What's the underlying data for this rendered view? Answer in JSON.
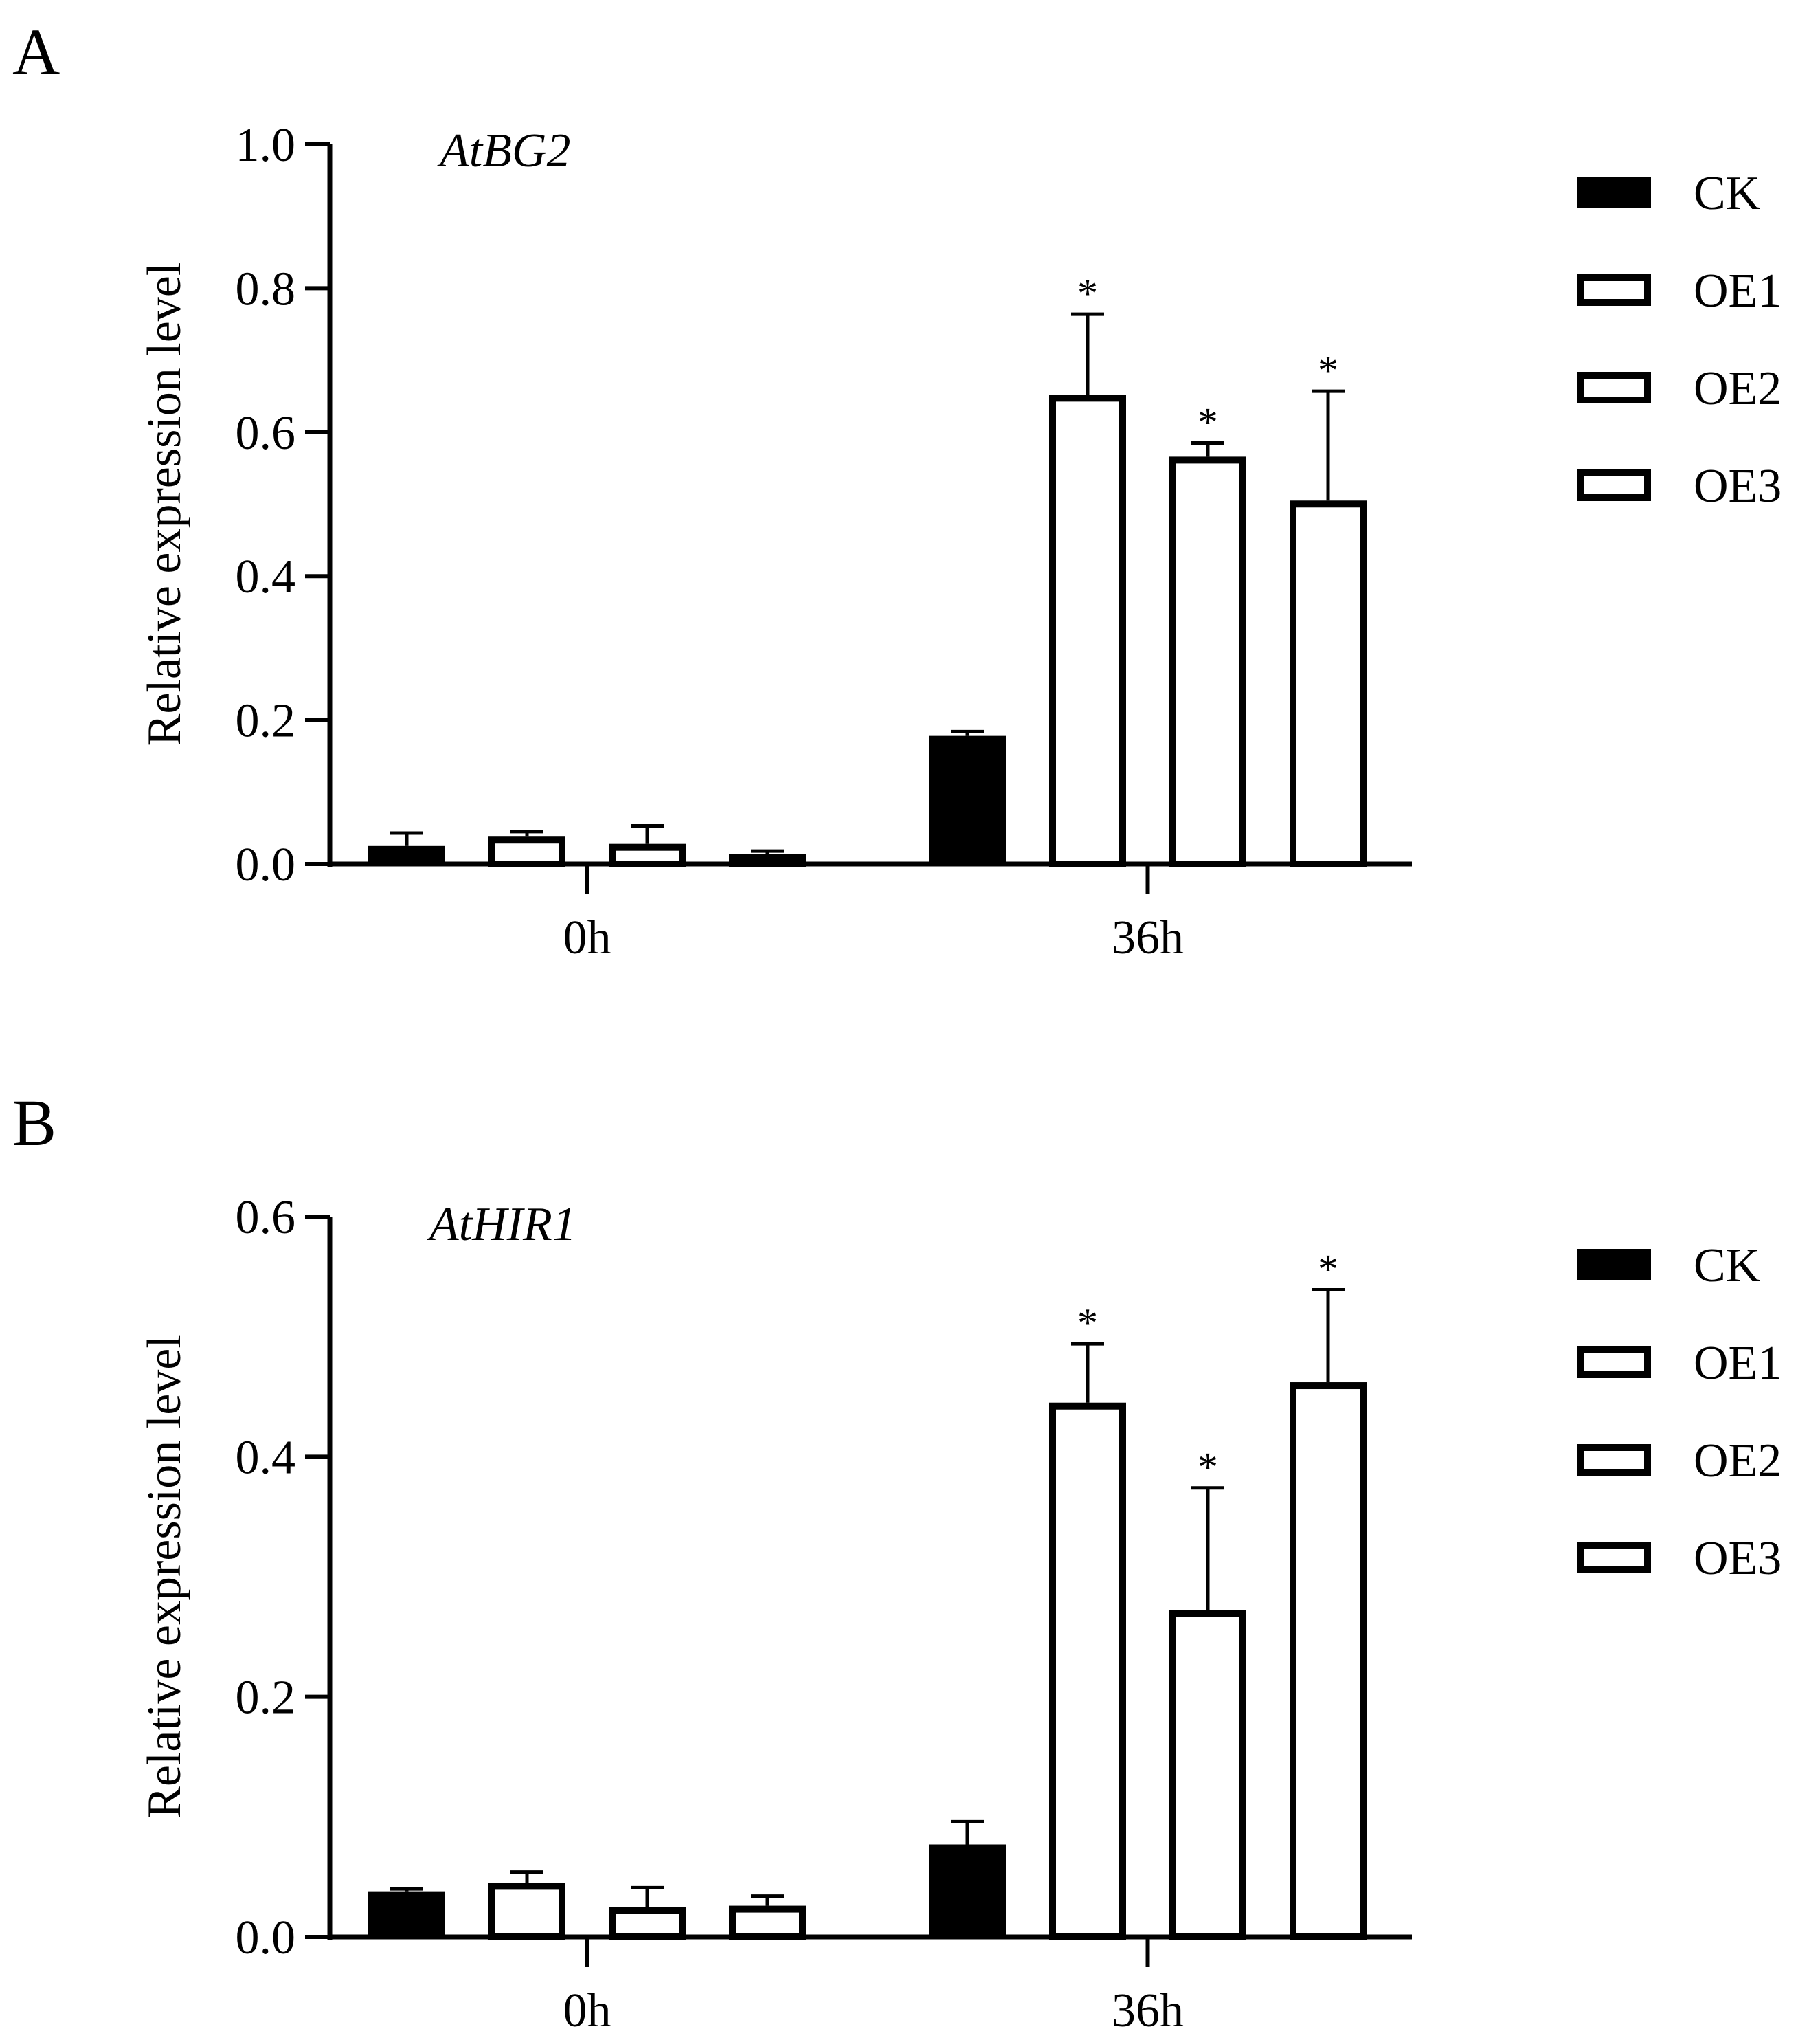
{
  "figure": {
    "colors": {
      "ink": "#000000",
      "open_fill": "#ffffff",
      "filled": "#000000"
    }
  },
  "chart_data": [
    {
      "type": "bar",
      "panel_label": "A",
      "title": "AtBG2",
      "xlabel": "",
      "ylabel": "Relative expression level",
      "categories": [
        "0h",
        "36h"
      ],
      "ylim": [
        0,
        1.0
      ],
      "yticks": [
        "0.0",
        "0.2",
        "0.4",
        "0.6",
        "0.8",
        "1.0"
      ],
      "legend": [
        "CK",
        "OE1",
        "OE2",
        "OE3"
      ],
      "legend_position": "right",
      "series": [
        {
          "name": "CK",
          "style": "filled",
          "values": [
            0.025,
            0.178
          ],
          "errors": [
            0.018,
            0.006
          ],
          "marks": [
            "",
            ""
          ]
        },
        {
          "name": "OE1",
          "style": "open",
          "values": [
            0.038,
            0.652
          ],
          "errors": [
            0.007,
            0.112
          ],
          "marks": [
            "",
            "*"
          ]
        },
        {
          "name": "OE2",
          "style": "open",
          "values": [
            0.028,
            0.566
          ],
          "errors": [
            0.025,
            0.019
          ],
          "marks": [
            "",
            "*"
          ]
        },
        {
          "name": "OE3",
          "style": "open",
          "values": [
            0.014,
            0.505
          ],
          "errors": [
            0.004,
            0.152
          ],
          "marks": [
            "",
            "*"
          ]
        }
      ]
    },
    {
      "type": "bar",
      "panel_label": "B",
      "title": "AtHIR1",
      "xlabel": "",
      "ylabel": "Relative expression level",
      "categories": [
        "0h",
        "36h"
      ],
      "ylim": [
        0,
        0.6
      ],
      "yticks": [
        "0.0",
        "0.2",
        "0.4",
        "0.6"
      ],
      "legend": [
        "CK",
        "OE1",
        "OE2",
        "OE3"
      ],
      "legend_position": "right",
      "series": [
        {
          "name": "CK",
          "style": "filled",
          "values": [
            0.038,
            0.077
          ],
          "errors": [
            0.002,
            0.019
          ],
          "marks": [
            "",
            ""
          ]
        },
        {
          "name": "OE1",
          "style": "open",
          "values": [
            0.045,
            0.445
          ],
          "errors": [
            0.009,
            0.049
          ],
          "marks": [
            "",
            "*"
          ]
        },
        {
          "name": "OE2",
          "style": "open",
          "values": [
            0.025,
            0.272
          ],
          "errors": [
            0.016,
            0.102
          ],
          "marks": [
            "",
            "*"
          ]
        },
        {
          "name": "OE3",
          "style": "open",
          "values": [
            0.026,
            0.462
          ],
          "errors": [
            0.008,
            0.077
          ],
          "marks": [
            "",
            "*"
          ]
        }
      ]
    }
  ]
}
